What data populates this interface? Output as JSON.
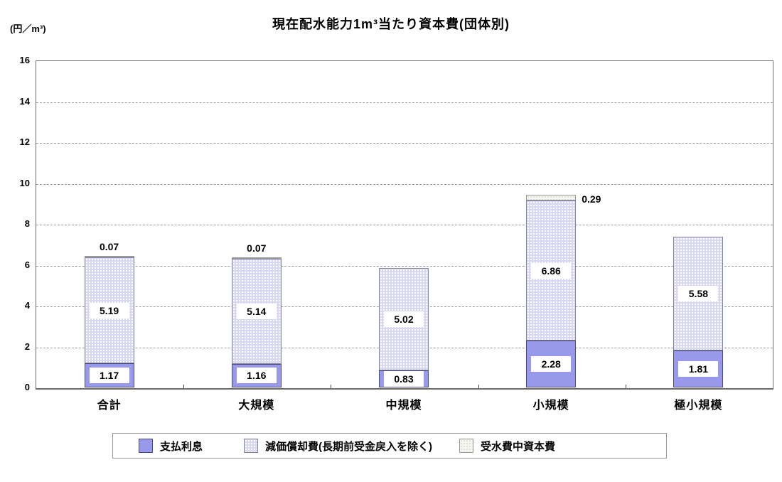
{
  "chart_data": {
    "type": "bar",
    "stacked": true,
    "title": "現在配水能力1m³当たり資本費(団体別)",
    "unit_label": "(円／m³)",
    "categories": [
      "合計",
      "大規模",
      "中規模",
      "小規模",
      "極小規模"
    ],
    "series": [
      {
        "name": "支払利息",
        "color": "#9999eb",
        "border_color": "#4a4a78",
        "values": [
          1.17,
          1.16,
          0.83,
          2.28,
          1.81
        ]
      },
      {
        "name": "減価償却費(長期前受金戻入を除く)",
        "color": "#d7d7f2",
        "border_color": "#8585aa",
        "values": [
          5.19,
          5.14,
          5.02,
          6.86,
          5.58
        ]
      },
      {
        "name": "受水費中資本費",
        "color": "#f6f6f1",
        "border_color": "#999999",
        "values": [
          0.07,
          0.07,
          null,
          0.29,
          null
        ],
        "label_pos": [
          "above",
          "above",
          null,
          "right",
          null
        ]
      }
    ],
    "ylim": [
      0,
      16
    ],
    "ytick_step": 2,
    "yticks": [
      0,
      2,
      4,
      6,
      8,
      10,
      12,
      14,
      16
    ],
    "grid": "horizontal-dashed",
    "legend_position": "bottom"
  }
}
